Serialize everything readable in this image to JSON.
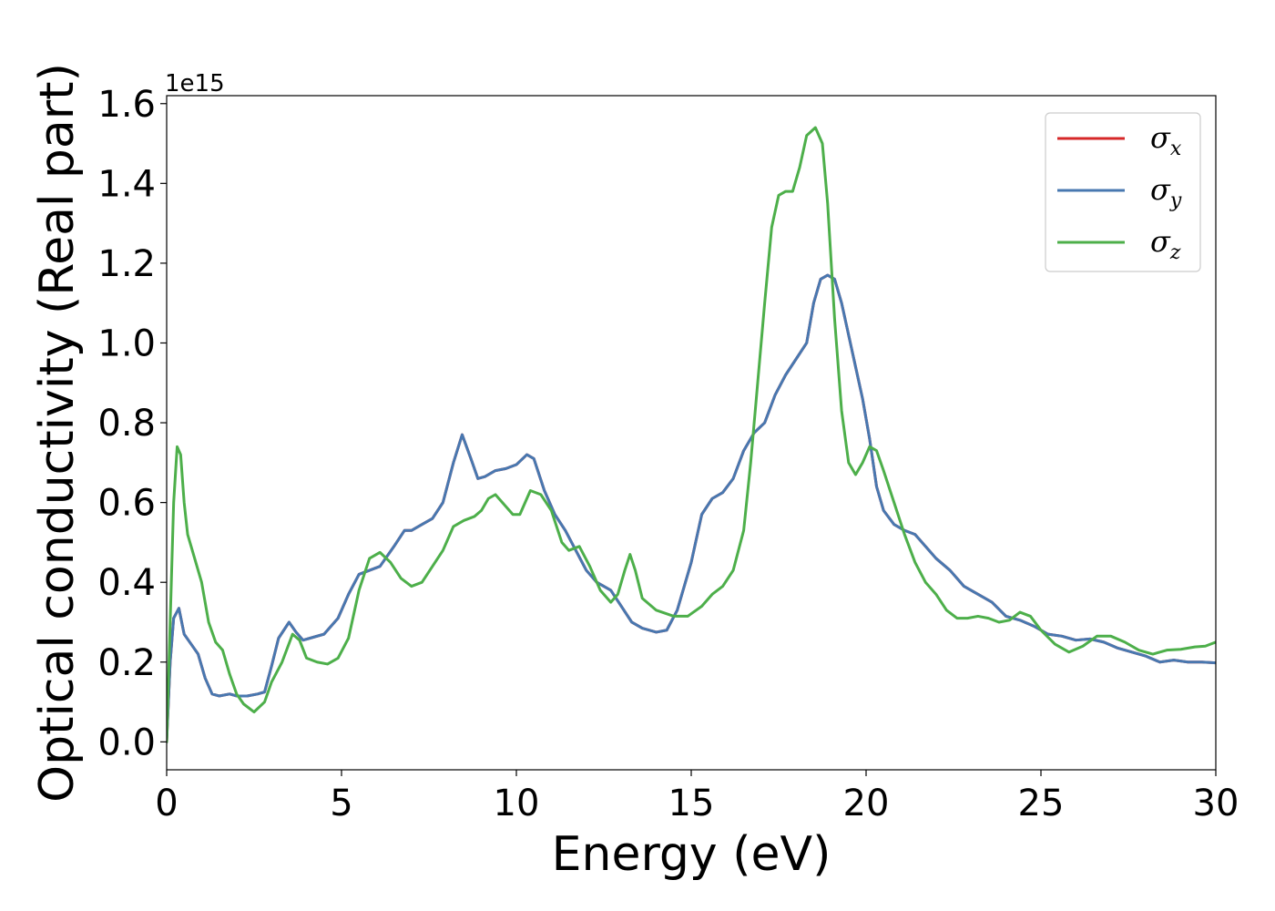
{
  "chart_data": {
    "type": "line",
    "xlabel": "Energy (eV)",
    "ylabel": "Optical conductivity (Real part)",
    "y_offset_label": "1e15",
    "xlim": [
      0,
      30
    ],
    "ylim": [
      -0.07,
      1.62
    ],
    "x_ticks": [
      0,
      5,
      10,
      15,
      20,
      25,
      30
    ],
    "x_tick_labels": [
      "0",
      "5",
      "10",
      "15",
      "20",
      "25",
      "30"
    ],
    "y_ticks": [
      0.0,
      0.2,
      0.4,
      0.6,
      0.8,
      1.0,
      1.2,
      1.4,
      1.6
    ],
    "y_tick_labels": [
      "0.0",
      "0.2",
      "0.4",
      "0.6",
      "0.8",
      "1.0",
      "1.2",
      "1.4",
      "1.6"
    ],
    "grid": false,
    "legend_position": "top-right",
    "series": [
      {
        "name": "σ",
        "subscript": "x",
        "color": "#d62728",
        "x": [
          0,
          0.1,
          0.2,
          0.35,
          0.5,
          0.7,
          0.9,
          1.1,
          1.3,
          1.5,
          1.8,
          2.0,
          2.3,
          2.6,
          2.8,
          3.0,
          3.2,
          3.5,
          3.7,
          3.9,
          4.1,
          4.5,
          4.9,
          5.2,
          5.5,
          5.8,
          6.1,
          6.5,
          6.8,
          7.0,
          7.3,
          7.6,
          7.9,
          8.2,
          8.45,
          8.7,
          8.9,
          9.1,
          9.4,
          9.7,
          10.0,
          10.3,
          10.5,
          10.8,
          11.1,
          11.4,
          11.7,
          12.0,
          12.3,
          12.7,
          13.0,
          13.3,
          13.6,
          14.0,
          14.3,
          14.6,
          15.0,
          15.3,
          15.6,
          15.9,
          16.2,
          16.5,
          16.8,
          17.1,
          17.4,
          17.7,
          18.0,
          18.3,
          18.5,
          18.7,
          18.9,
          19.1,
          19.3,
          19.5,
          19.7,
          19.9,
          20.1,
          20.3,
          20.5,
          20.8,
          21.1,
          21.4,
          21.7,
          22.0,
          22.4,
          22.8,
          23.2,
          23.6,
          24.0,
          24.4,
          24.8,
          25.2,
          25.6,
          26.0,
          26.4,
          26.8,
          27.2,
          27.6,
          28.0,
          28.4,
          28.8,
          29.2,
          29.6,
          30.0
        ],
        "values": [
          0.0,
          0.2,
          0.31,
          0.335,
          0.27,
          0.245,
          0.22,
          0.16,
          0.12,
          0.115,
          0.12,
          0.115,
          0.115,
          0.12,
          0.125,
          0.19,
          0.26,
          0.3,
          0.275,
          0.255,
          0.26,
          0.27,
          0.31,
          0.37,
          0.42,
          0.43,
          0.44,
          0.49,
          0.53,
          0.53,
          0.545,
          0.56,
          0.6,
          0.7,
          0.77,
          0.71,
          0.66,
          0.665,
          0.68,
          0.685,
          0.695,
          0.72,
          0.71,
          0.63,
          0.57,
          0.53,
          0.48,
          0.43,
          0.4,
          0.38,
          0.34,
          0.3,
          0.285,
          0.275,
          0.28,
          0.33,
          0.45,
          0.57,
          0.61,
          0.625,
          0.66,
          0.73,
          0.775,
          0.8,
          0.87,
          0.92,
          0.96,
          1.0,
          1.1,
          1.16,
          1.17,
          1.16,
          1.1,
          1.02,
          0.94,
          0.86,
          0.76,
          0.64,
          0.58,
          0.545,
          0.53,
          0.52,
          0.49,
          0.46,
          0.43,
          0.39,
          0.37,
          0.35,
          0.315,
          0.305,
          0.29,
          0.27,
          0.265,
          0.255,
          0.258,
          0.25,
          0.235,
          0.225,
          0.215,
          0.2,
          0.205,
          0.2,
          0.2,
          0.198
        ]
      },
      {
        "name": "σ",
        "subscript": "y",
        "color": "#4878b0",
        "x": [
          0,
          0.1,
          0.2,
          0.35,
          0.5,
          0.7,
          0.9,
          1.1,
          1.3,
          1.5,
          1.8,
          2.0,
          2.3,
          2.6,
          2.8,
          3.0,
          3.2,
          3.5,
          3.7,
          3.9,
          4.1,
          4.5,
          4.9,
          5.2,
          5.5,
          5.8,
          6.1,
          6.5,
          6.8,
          7.0,
          7.3,
          7.6,
          7.9,
          8.2,
          8.45,
          8.7,
          8.9,
          9.1,
          9.4,
          9.7,
          10.0,
          10.3,
          10.5,
          10.8,
          11.1,
          11.4,
          11.7,
          12.0,
          12.3,
          12.7,
          13.0,
          13.3,
          13.6,
          14.0,
          14.3,
          14.6,
          15.0,
          15.3,
          15.6,
          15.9,
          16.2,
          16.5,
          16.8,
          17.1,
          17.4,
          17.7,
          18.0,
          18.3,
          18.5,
          18.7,
          18.9,
          19.1,
          19.3,
          19.5,
          19.7,
          19.9,
          20.1,
          20.3,
          20.5,
          20.8,
          21.1,
          21.4,
          21.7,
          22.0,
          22.4,
          22.8,
          23.2,
          23.6,
          24.0,
          24.4,
          24.8,
          25.2,
          25.6,
          26.0,
          26.4,
          26.8,
          27.2,
          27.6,
          28.0,
          28.4,
          28.8,
          29.2,
          29.6,
          30.0
        ],
        "values": [
          0.0,
          0.2,
          0.31,
          0.335,
          0.27,
          0.245,
          0.22,
          0.16,
          0.12,
          0.115,
          0.12,
          0.115,
          0.115,
          0.12,
          0.125,
          0.19,
          0.26,
          0.3,
          0.275,
          0.255,
          0.26,
          0.27,
          0.31,
          0.37,
          0.42,
          0.43,
          0.44,
          0.49,
          0.53,
          0.53,
          0.545,
          0.56,
          0.6,
          0.7,
          0.77,
          0.71,
          0.66,
          0.665,
          0.68,
          0.685,
          0.695,
          0.72,
          0.71,
          0.63,
          0.57,
          0.53,
          0.48,
          0.43,
          0.4,
          0.38,
          0.34,
          0.3,
          0.285,
          0.275,
          0.28,
          0.33,
          0.45,
          0.57,
          0.61,
          0.625,
          0.66,
          0.73,
          0.775,
          0.8,
          0.87,
          0.92,
          0.96,
          1.0,
          1.1,
          1.16,
          1.17,
          1.16,
          1.1,
          1.02,
          0.94,
          0.86,
          0.76,
          0.64,
          0.58,
          0.545,
          0.53,
          0.52,
          0.49,
          0.46,
          0.43,
          0.39,
          0.37,
          0.35,
          0.315,
          0.305,
          0.29,
          0.27,
          0.265,
          0.255,
          0.258,
          0.25,
          0.235,
          0.225,
          0.215,
          0.2,
          0.205,
          0.2,
          0.2,
          0.198
        ]
      },
      {
        "name": "σ",
        "subscript": "z",
        "color": "#4daf4a",
        "x": [
          0,
          0.1,
          0.2,
          0.3,
          0.4,
          0.5,
          0.6,
          0.8,
          1.0,
          1.2,
          1.4,
          1.6,
          1.8,
          2.0,
          2.2,
          2.5,
          2.8,
          3.0,
          3.3,
          3.6,
          3.8,
          4.0,
          4.3,
          4.6,
          4.9,
          5.2,
          5.5,
          5.8,
          6.1,
          6.4,
          6.7,
          7.0,
          7.3,
          7.6,
          7.9,
          8.2,
          8.5,
          8.8,
          9.0,
          9.2,
          9.4,
          9.6,
          9.9,
          10.1,
          10.4,
          10.7,
          11.0,
          11.3,
          11.5,
          11.8,
          12.1,
          12.4,
          12.7,
          12.9,
          13.1,
          13.25,
          13.4,
          13.6,
          14.0,
          14.5,
          14.9,
          15.3,
          15.6,
          15.9,
          16.2,
          16.5,
          16.7,
          16.9,
          17.1,
          17.3,
          17.5,
          17.7,
          17.9,
          18.1,
          18.3,
          18.55,
          18.75,
          18.9,
          19.1,
          19.3,
          19.5,
          19.7,
          19.9,
          20.1,
          20.3,
          20.5,
          20.8,
          21.1,
          21.4,
          21.7,
          22.0,
          22.3,
          22.6,
          22.9,
          23.2,
          23.5,
          23.8,
          24.1,
          24.4,
          24.7,
          25.0,
          25.4,
          25.8,
          26.2,
          26.6,
          27.0,
          27.4,
          27.8,
          28.2,
          28.6,
          29.0,
          29.4,
          29.7,
          30.0
        ],
        "values": [
          0.0,
          0.3,
          0.6,
          0.74,
          0.72,
          0.6,
          0.52,
          0.46,
          0.4,
          0.3,
          0.25,
          0.23,
          0.17,
          0.12,
          0.095,
          0.075,
          0.1,
          0.15,
          0.2,
          0.27,
          0.255,
          0.21,
          0.2,
          0.195,
          0.21,
          0.26,
          0.38,
          0.46,
          0.475,
          0.45,
          0.41,
          0.39,
          0.4,
          0.44,
          0.48,
          0.54,
          0.555,
          0.565,
          0.58,
          0.61,
          0.62,
          0.6,
          0.57,
          0.57,
          0.63,
          0.62,
          0.58,
          0.5,
          0.48,
          0.49,
          0.44,
          0.38,
          0.35,
          0.37,
          0.43,
          0.47,
          0.43,
          0.36,
          0.33,
          0.315,
          0.315,
          0.34,
          0.37,
          0.39,
          0.43,
          0.53,
          0.7,
          0.9,
          1.1,
          1.29,
          1.37,
          1.38,
          1.38,
          1.44,
          1.52,
          1.54,
          1.5,
          1.35,
          1.06,
          0.83,
          0.7,
          0.67,
          0.7,
          0.74,
          0.73,
          0.68,
          0.6,
          0.52,
          0.45,
          0.4,
          0.37,
          0.33,
          0.31,
          0.31,
          0.315,
          0.31,
          0.3,
          0.305,
          0.325,
          0.315,
          0.28,
          0.245,
          0.225,
          0.24,
          0.265,
          0.265,
          0.25,
          0.23,
          0.22,
          0.23,
          0.232,
          0.238,
          0.24,
          0.25
        ]
      }
    ]
  }
}
